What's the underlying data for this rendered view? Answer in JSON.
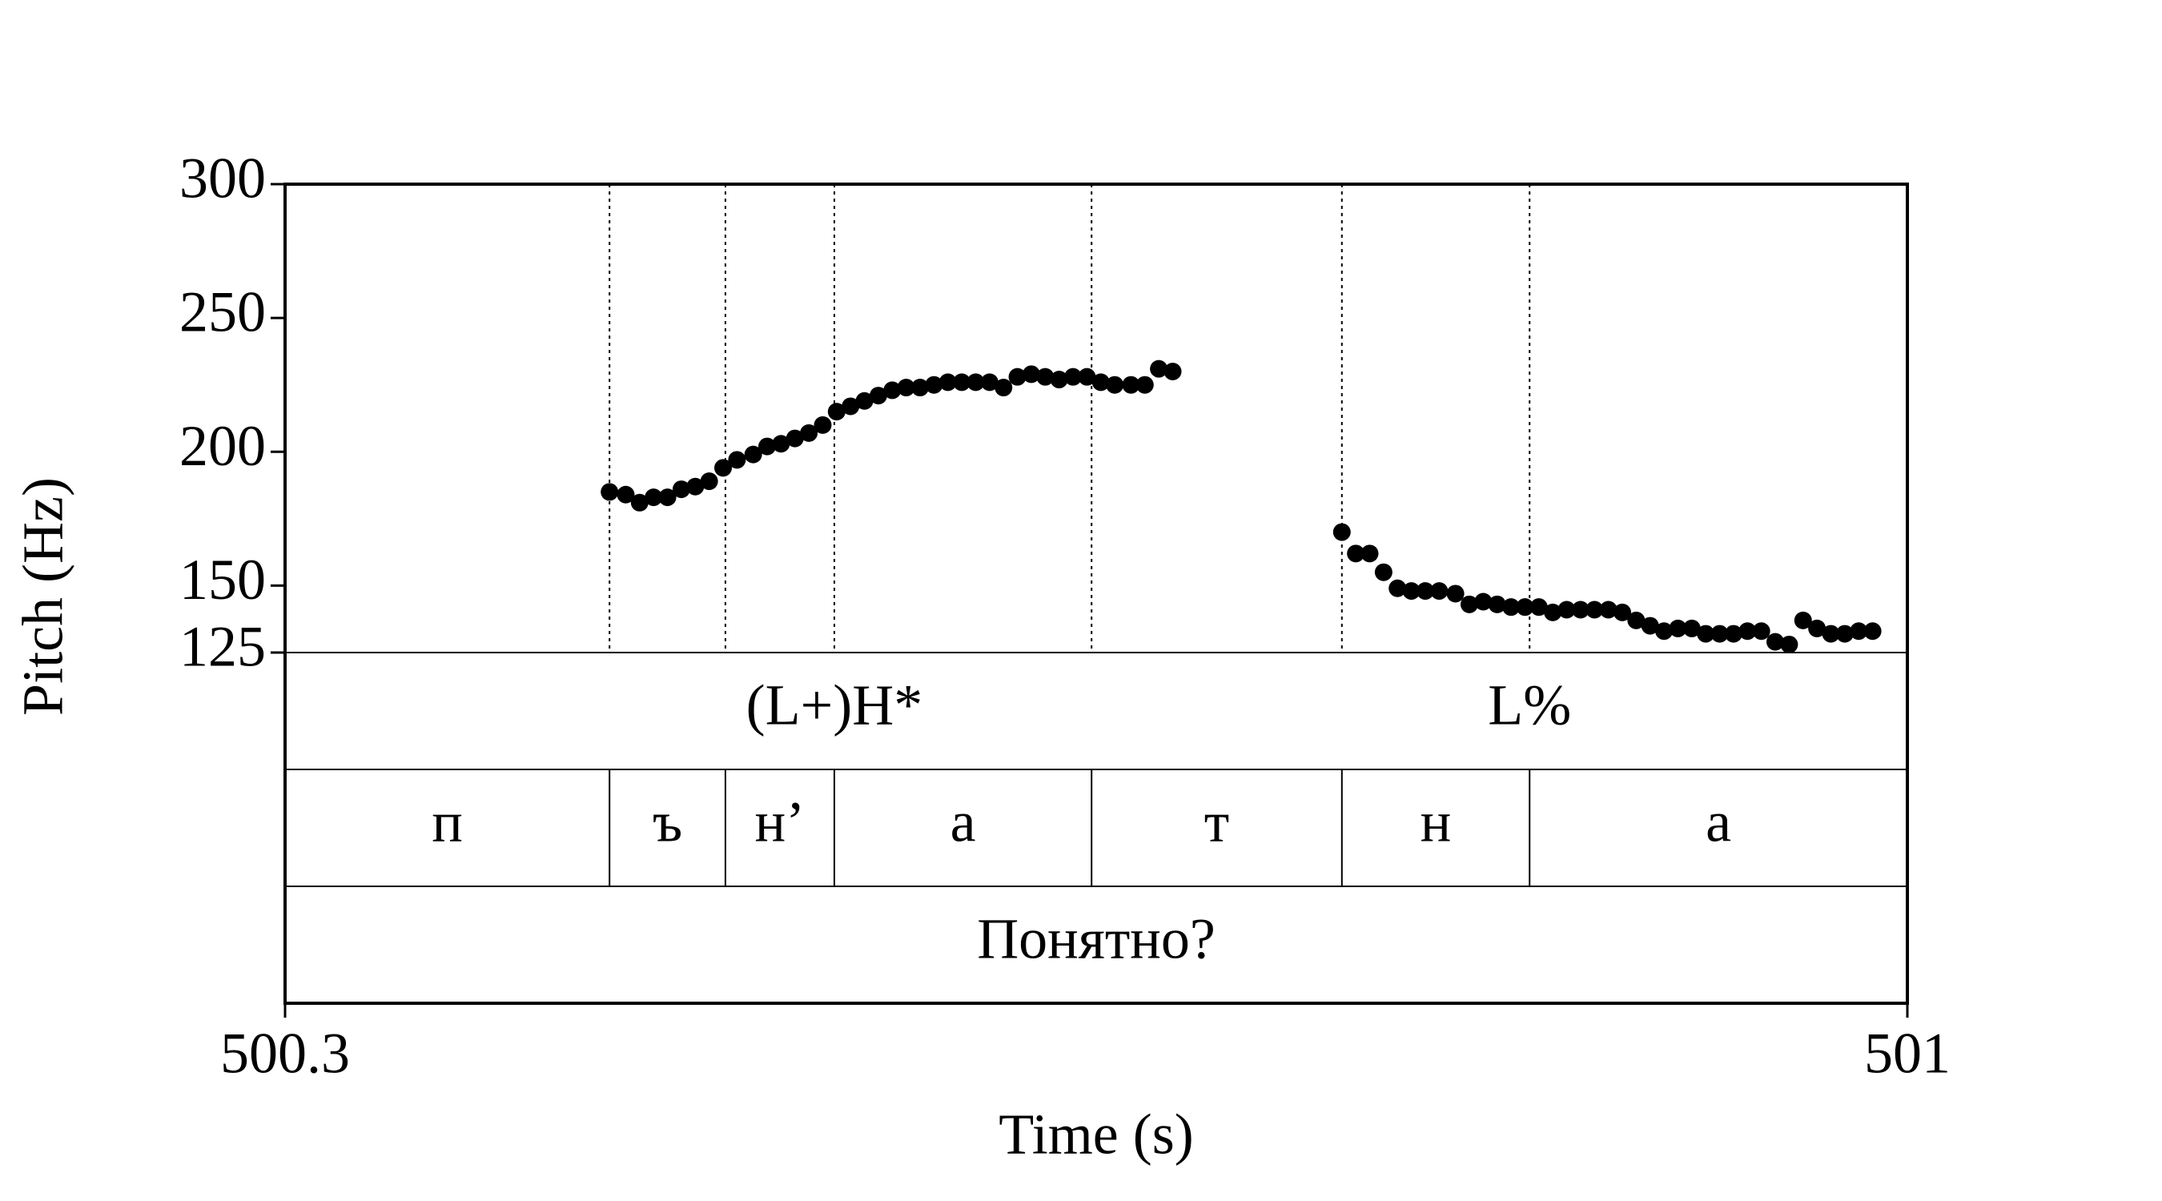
{
  "chart_data": {
    "type": "scatter",
    "x_label": "Time (s)",
    "y_label": "Pitch (Hz)",
    "xlim": [
      500.3,
      501
    ],
    "xticks": [
      500.3,
      501
    ],
    "ylim": [
      125,
      300
    ],
    "yticks": [
      125,
      150,
      200,
      250,
      300
    ],
    "color": "#000000",
    "x": [
      500.44,
      500.447,
      500.453,
      500.459,
      500.465,
      500.471,
      500.477,
      500.483,
      500.489,
      500.495,
      500.502,
      500.508,
      500.514,
      500.52,
      500.526,
      500.532,
      500.538,
      500.544,
      500.55,
      500.556,
      500.562,
      500.568,
      500.574,
      500.58,
      500.586,
      500.592,
      500.598,
      500.604,
      500.61,
      500.616,
      500.622,
      500.628,
      500.634,
      500.64,
      500.646,
      500.652,
      500.658,
      500.665,
      500.671,
      500.677,
      500.683,
      500.756,
      500.762,
      500.768,
      500.774,
      500.78,
      500.786,
      500.792,
      500.798,
      500.805,
      500.811,
      500.817,
      500.823,
      500.829,
      500.835,
      500.841,
      500.847,
      500.853,
      500.859,
      500.865,
      500.871,
      500.877,
      500.883,
      500.889,
      500.895,
      500.901,
      500.907,
      500.913,
      500.919,
      500.925,
      500.931,
      500.937,
      500.943,
      500.949,
      500.955,
      500.961,
      500.967,
      500.973,
      500.979,
      500.985
    ],
    "values": [
      185,
      184,
      181,
      183,
      183,
      186,
      187,
      189,
      194,
      197,
      199,
      202,
      203,
      205,
      207,
      210,
      215,
      217,
      219,
      221,
      223,
      224,
      224,
      225,
      226,
      226,
      226,
      226,
      224,
      228,
      229,
      228,
      227,
      228,
      228,
      226,
      225,
      225,
      225,
      231,
      230,
      170,
      162,
      162,
      155,
      149,
      148,
      148,
      148,
      147,
      143,
      144,
      143,
      142,
      142,
      142,
      140,
      141,
      141,
      141,
      141,
      140,
      137,
      135,
      133,
      134,
      134,
      132,
      132,
      132,
      133,
      133,
      129,
      128,
      137,
      134,
      132,
      132,
      133,
      133
    ],
    "tiers": [
      {
        "points": [
          {
            "time": 500.537,
            "label": "(L+)H*"
          },
          {
            "time": 500.837,
            "label": "L%"
          }
        ]
      },
      {
        "intervals": [
          {
            "start": 500.3,
            "end": 500.44,
            "label": "п"
          },
          {
            "start": 500.44,
            "end": 500.49,
            "label": "ъ"
          },
          {
            "start": 500.49,
            "end": 500.537,
            "label": "н’"
          },
          {
            "start": 500.537,
            "end": 500.648,
            "label": "а"
          },
          {
            "start": 500.648,
            "end": 500.756,
            "label": "т"
          },
          {
            "start": 500.756,
            "end": 500.837,
            "label": "н"
          },
          {
            "start": 500.837,
            "end": 501,
            "label": "а"
          }
        ]
      },
      {
        "intervals": [
          {
            "start": 500.3,
            "end": 501,
            "label": "Понятно?"
          }
        ]
      }
    ]
  }
}
